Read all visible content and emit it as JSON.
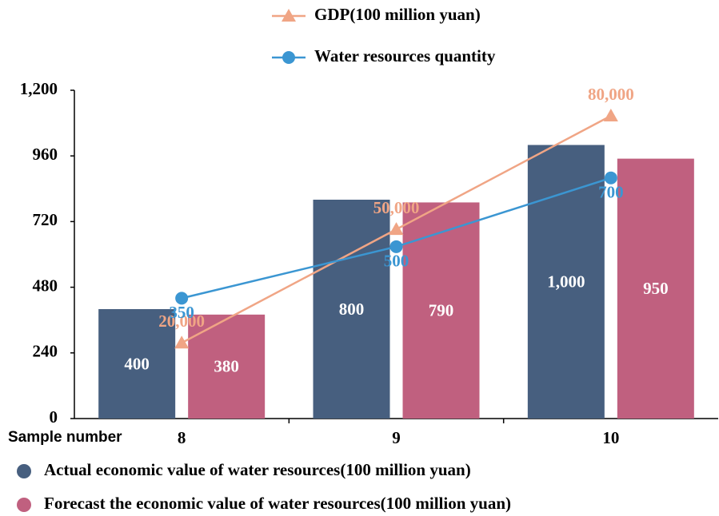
{
  "chart_data": {
    "type": "bar",
    "xlabel": "Sample number",
    "categories": [
      "8",
      "9",
      "10"
    ],
    "ylim": [
      0,
      1200
    ],
    "yticks": [
      0,
      240,
      480,
      720,
      960,
      {
        "value": 1200,
        "label": "1,200"
      }
    ],
    "y2lim": [
      0,
      955
    ],
    "y3lim": [
      0,
      86760
    ],
    "series": [
      {
        "name": "Actual economic value of water resources(100 million yuan)",
        "type": "bar",
        "color": "#475f7f",
        "values": [
          400,
          800,
          1000
        ],
        "value_labels": [
          "400",
          "800",
          "1,000"
        ]
      },
      {
        "name": "Forecast the economic value of water resources(100 million yuan)",
        "type": "bar",
        "color": "#c0607f",
        "values": [
          380,
          790,
          950
        ]
      },
      {
        "name": "GDP(100 million yuan)",
        "type": "line",
        "marker": "triangle",
        "axis": "y3",
        "color": "#f0a585",
        "values": [
          20000,
          50000,
          80000
        ],
        "value_labels": [
          "20,000",
          "50,000",
          "80,000"
        ]
      },
      {
        "name": "Water resources quantity",
        "type": "line",
        "marker": "circle",
        "axis": "y2",
        "color": "#3b96d2",
        "values": [
          350,
          500,
          700
        ]
      }
    ]
  }
}
